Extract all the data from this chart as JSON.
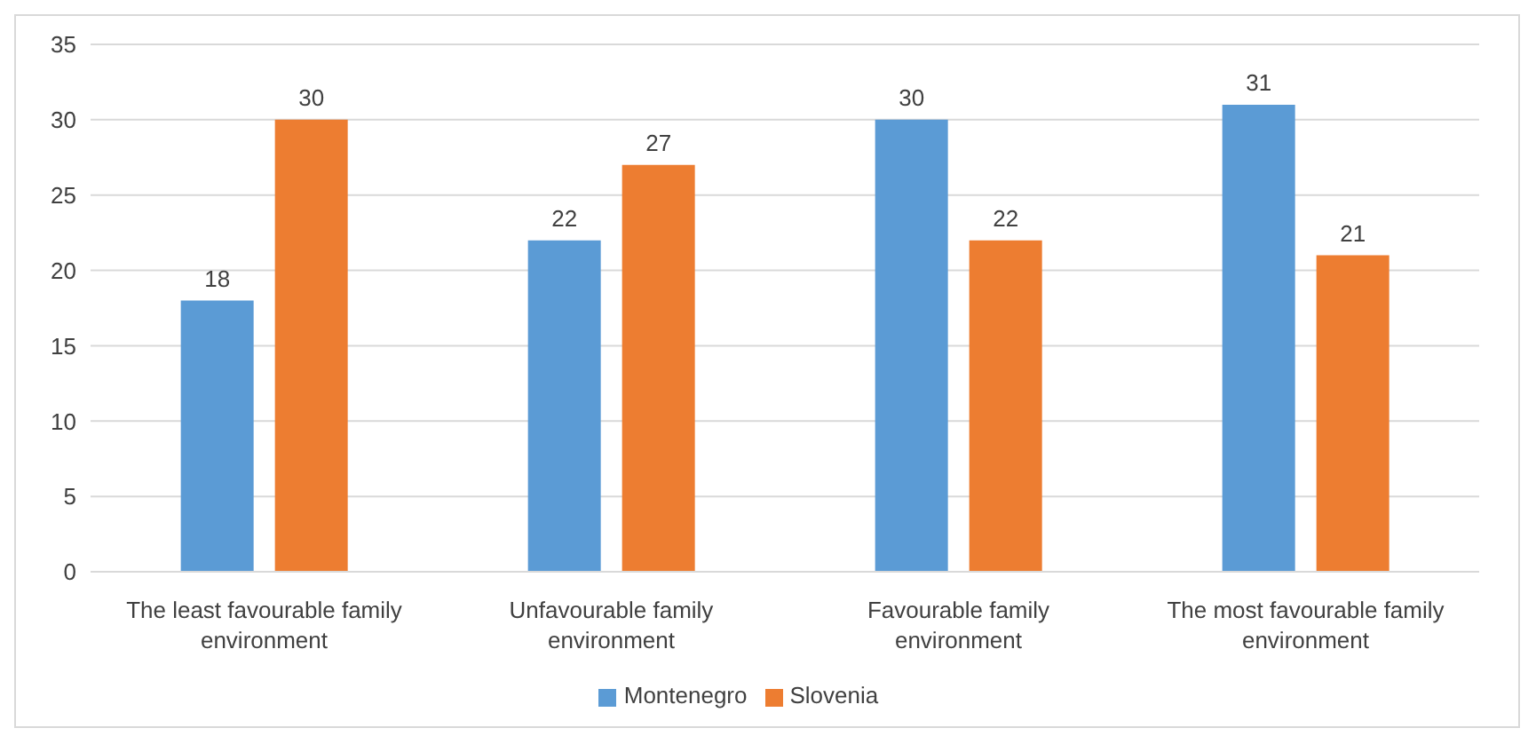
{
  "chart_data": {
    "type": "bar",
    "categories": [
      "The least favourable family environment",
      "Unfavourable family environment",
      "Favourable family environment",
      "The most favourable family environment"
    ],
    "series": [
      {
        "name": "Montenegro",
        "color": "#5b9bd5",
        "values": [
          18,
          22,
          30,
          31
        ]
      },
      {
        "name": "Slovenia",
        "color": "#ed7d31",
        "values": [
          30,
          27,
          22,
          21
        ]
      }
    ],
    "ylim": [
      0,
      35
    ],
    "yticks": [
      0,
      5,
      10,
      15,
      20,
      25,
      30,
      35
    ],
    "grid": "y",
    "legend": "bottom",
    "data_labels": true
  }
}
